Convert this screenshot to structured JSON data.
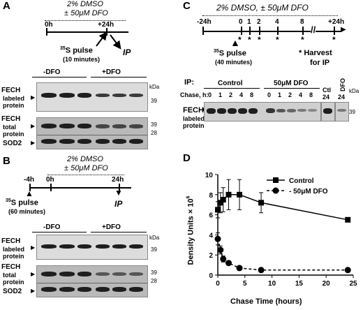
{
  "panel_a": {
    "letter": "A",
    "treatment": "2% DMSO",
    "treatment_dfo": "± 50μM DFO",
    "t0": "0h",
    "t24": "+24h",
    "pulse_sup": "35",
    "pulse": "S pulse",
    "pulse_dur": "(10 minutes)",
    "ip": "IP",
    "minus_dfo": "-DFO",
    "plus_dfo": "+DFO",
    "kda": "kDa",
    "fech": "FECH",
    "labeled": "labeled",
    "protein": "protein",
    "total": "total",
    "sod2": "SOD2",
    "mw39": "39",
    "mw39b": "39",
    "mw28": "28"
  },
  "panel_b": {
    "letter": "B",
    "treatment": "2% DMSO",
    "treatment_dfo": "± 50μM DFO",
    "tm4": "-4h",
    "t0": "0h",
    "t24": "24h",
    "pulse_sup": "35",
    "pulse": "S pulse",
    "pulse_dur": "(60 minutes)",
    "ip": "IP",
    "minus_dfo": "-DFO",
    "plus_dfo": "+DFO",
    "kda": "kDa",
    "fech": "FECH",
    "labeled": "labeled",
    "protein": "protein",
    "total": "total",
    "sod2": "SOD2",
    "mw39": "39",
    "mw39b": "39",
    "mw28": "28"
  },
  "panel_c": {
    "letter": "C",
    "treatment": "2% DMSO, ± 50μM DFO",
    "tm24": "-24h",
    "t0": "0",
    "t1": "1",
    "t2": "2",
    "t4": "4",
    "t8": "8",
    "t24": "+24h",
    "pulse_sup": "35",
    "pulse": "S pulse",
    "pulse_dur": "(40 minutes)",
    "harvest": "Harvest",
    "for_ip": "for IP",
    "ip_label": "IP:",
    "control": "Control",
    "dfo50": "50μM DFO",
    "chase_label": "Chase, h:",
    "chase": [
      "0",
      "1",
      "2",
      "4",
      "8",
      "0",
      "1",
      "2",
      "4",
      "8"
    ],
    "ctl": "Ctl",
    "dfo": "DFO",
    "c24a": "24",
    "c24b": "24",
    "fech": "FECH",
    "labeled": "labeled",
    "protein": "protein",
    "kda": "kDa",
    "mw39": "39"
  },
  "panel_d": {
    "letter": "D"
  },
  "chart_data": {
    "type": "line",
    "xlabel": "Chase Time (hours)",
    "ylabel": "Density Units × 10",
    "ylabel_sup": "6",
    "xlim": [
      0,
      25
    ],
    "ylim": [
      0,
      10
    ],
    "xticks": [
      0,
      5,
      10,
      15,
      20,
      25
    ],
    "yticks": [
      0,
      2,
      4,
      6,
      8,
      10
    ],
    "legend_position": "top-right",
    "series": [
      {
        "name": "Control",
        "style": "solid",
        "marker": "square",
        "x": [
          0,
          0.5,
          1,
          2,
          4,
          8,
          24
        ],
        "y": [
          6.5,
          7.2,
          7.5,
          8.0,
          8.0,
          7.2,
          5.5
        ],
        "err": [
          0.8,
          1.0,
          1.2,
          1.5,
          1.5,
          1.0,
          0.2
        ]
      },
      {
        "name": "50μM DFO",
        "style": "dashed",
        "marker": "circle",
        "x": [
          0,
          0.5,
          1,
          2,
          4,
          8,
          24
        ],
        "y": [
          3.6,
          2.5,
          1.6,
          1.2,
          0.7,
          0.5,
          0.5
        ],
        "err": [
          0.6,
          0.4,
          0.3,
          0.2,
          0.1,
          0.1,
          0.1
        ]
      }
    ]
  }
}
